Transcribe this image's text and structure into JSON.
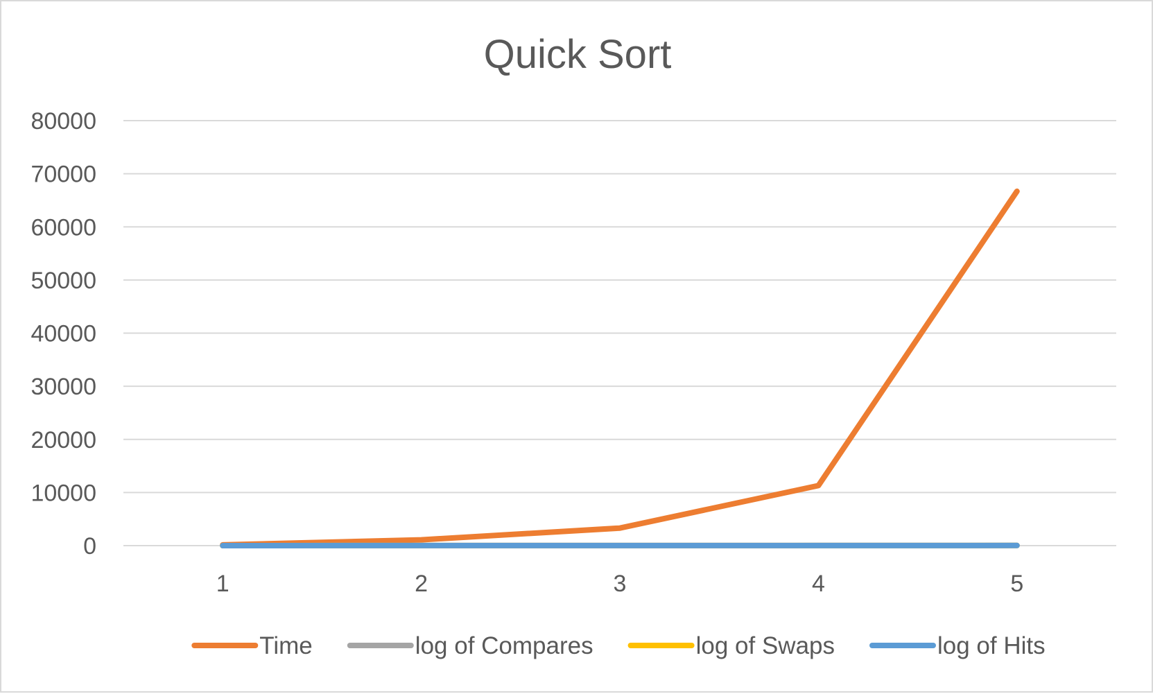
{
  "chart_data": {
    "type": "line",
    "title": "Quick Sort",
    "categories": [
      "1",
      "2",
      "3",
      "4",
      "5"
    ],
    "ylim": [
      0,
      80000
    ],
    "yticks": [
      0,
      10000,
      20000,
      30000,
      40000,
      50000,
      60000,
      70000,
      80000
    ],
    "grid": true,
    "legend_position": "bottom",
    "series": [
      {
        "name": "Time",
        "color": "#ED7D31",
        "values": [
          150,
          1100,
          3300,
          11300,
          66700
        ]
      },
      {
        "name": "log of Compares",
        "color": "#A5A5A5",
        "values": [
          5,
          10,
          15,
          20,
          25
        ]
      },
      {
        "name": "log of Swaps",
        "color": "#FFC000",
        "values": [
          4,
          8,
          12,
          16,
          20
        ]
      },
      {
        "name": "log of Hits",
        "color": "#5B9BD5",
        "values": [
          4,
          8,
          12,
          16,
          20
        ]
      }
    ]
  }
}
